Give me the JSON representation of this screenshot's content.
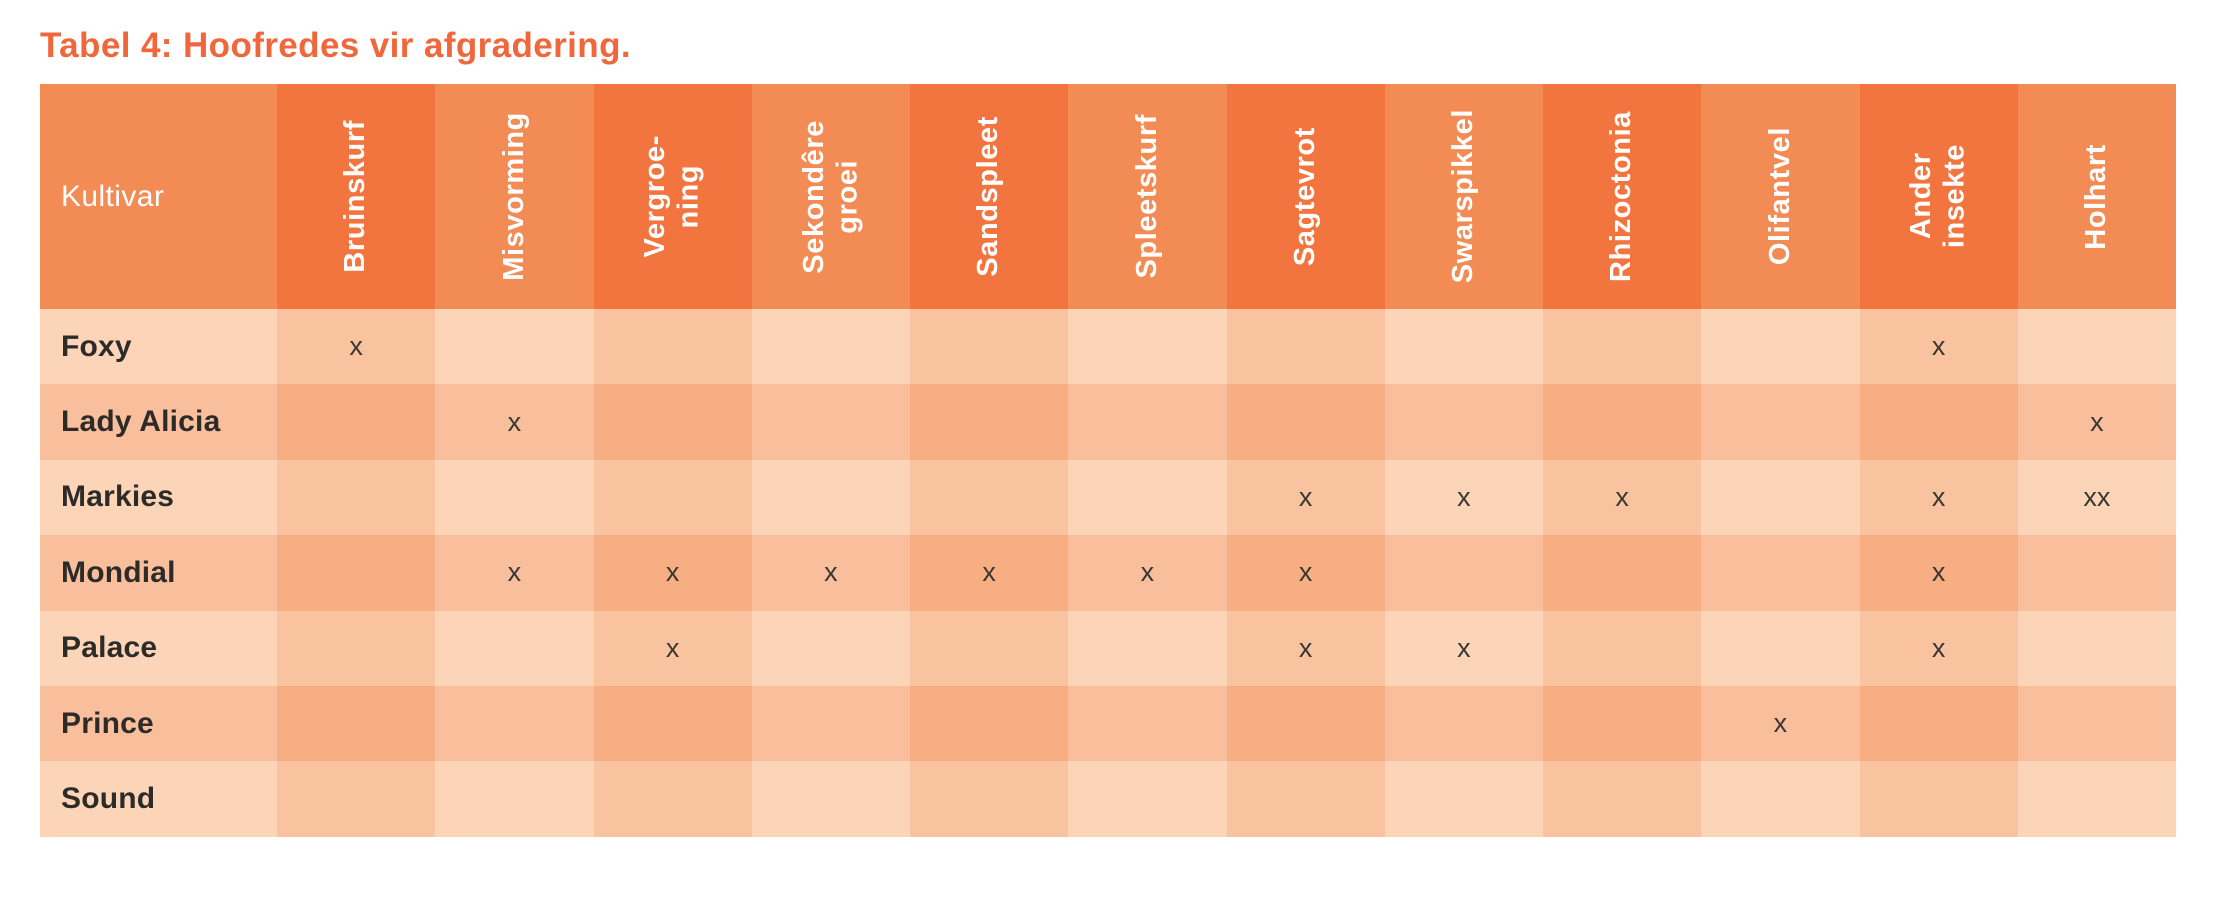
{
  "title": "Tabel 4: Hoofredes vir afgradering.",
  "colors": {
    "title": "#F0673C",
    "header_col_dark": "#F2753F",
    "header_col_light": "#F38B55",
    "header_text": "#FFFFFF",
    "cell_even_light": "#FCD4B8",
    "cell_even_dark": "#FAC3A0",
    "cell_odd_light": "#F9BF9D",
    "cell_odd_dark": "#F7AE83",
    "row_label_text": "#2D2B28",
    "mark_text": "#3A3733"
  },
  "table": {
    "kultivar_header": "Kultivar",
    "columns": [
      "Bruinskurf",
      "Misvorming",
      "Vergroe-\nning",
      "Sekondêre\ngroei",
      "Sandspleet",
      "Spleetskurf",
      "Sagtevrot",
      "Swarspikkel",
      "Rhizoctonia",
      "Olifantvel",
      "Ander\ninsekte",
      "Holhart"
    ],
    "rows": [
      {
        "name": "Foxy",
        "marks": [
          "x",
          "",
          "",
          "",
          "",
          "",
          "",
          "",
          "",
          "",
          "x",
          ""
        ]
      },
      {
        "name": "Lady Alicia",
        "marks": [
          "",
          "x",
          "",
          "",
          "",
          "",
          "",
          "",
          "",
          "",
          "",
          "x"
        ]
      },
      {
        "name": "Markies",
        "marks": [
          "",
          "",
          "",
          "",
          "",
          "",
          "x",
          "x",
          "x",
          "",
          "x",
          "xx"
        ]
      },
      {
        "name": "Mondial",
        "marks": [
          "",
          "x",
          "x",
          "x",
          "x",
          "x",
          "x",
          "",
          "",
          "",
          "x",
          ""
        ]
      },
      {
        "name": "Palace",
        "marks": [
          "",
          "",
          "x",
          "",
          "",
          "",
          "x",
          "x",
          "",
          "",
          "x",
          ""
        ]
      },
      {
        "name": "Prince",
        "marks": [
          "",
          "",
          "",
          "",
          "",
          "",
          "",
          "",
          "",
          "x",
          "",
          ""
        ]
      },
      {
        "name": "Sound",
        "marks": [
          "",
          "",
          "",
          "",
          "",
          "",
          "",
          "",
          "",
          "",
          "",
          ""
        ]
      }
    ]
  }
}
